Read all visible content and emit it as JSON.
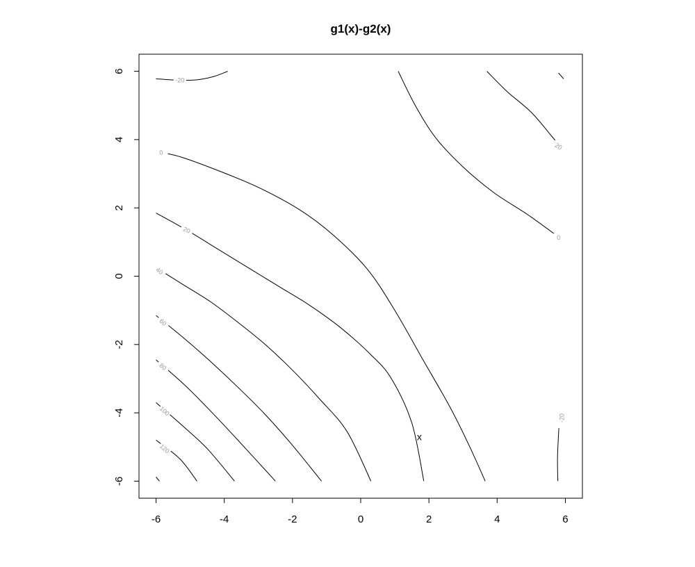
{
  "chart_data": {
    "type": "contour",
    "title": "g1(x)-g2(x)",
    "xlabel": "",
    "ylabel": "",
    "xlim": [
      -6.5,
      6.5
    ],
    "ylim": [
      -6.5,
      6.5
    ],
    "x_ticks": [
      -6,
      -4,
      -2,
      0,
      2,
      4,
      6
    ],
    "y_ticks": [
      -6,
      -4,
      -2,
      0,
      2,
      4,
      6
    ],
    "grid": false,
    "contours": [
      {
        "level": "-20",
        "points": [
          [
            -6.0,
            5.78
          ],
          [
            -5.4,
            5.74
          ],
          [
            -4.8,
            5.75
          ],
          [
            -4.3,
            5.85
          ],
          [
            -3.9,
            6.0
          ]
        ],
        "label_at": [
          -5.3,
          5.74
        ],
        "label_angle": 0
      },
      {
        "level": "20",
        "points": [
          [
            3.7,
            6.0
          ],
          [
            4.3,
            5.4
          ],
          [
            5.0,
            4.8
          ],
          [
            5.6,
            4.1
          ],
          [
            5.8,
            3.85
          ]
        ],
        "label_at": [
          5.8,
          3.8
        ],
        "label_angle": 32
      },
      {
        "level": "-20",
        "points": [
          [
            5.8,
            5.95
          ],
          [
            5.95,
            5.78
          ]
        ],
        "label_at": null,
        "label_angle": 0
      },
      {
        "level": "0",
        "points": [
          [
            1.1,
            6.0
          ],
          [
            1.6,
            5.0
          ],
          [
            2.2,
            4.05
          ],
          [
            3.0,
            3.2
          ],
          [
            3.9,
            2.45
          ],
          [
            4.9,
            1.8
          ],
          [
            5.8,
            1.15
          ]
        ],
        "label_at": [
          5.8,
          1.13
        ],
        "label_angle": 0
      },
      {
        "level": "0",
        "points": [
          [
            -6.0,
            3.65
          ],
          [
            -5.3,
            3.5
          ],
          [
            -4.2,
            3.1
          ],
          [
            -3.0,
            2.6
          ],
          [
            -1.8,
            1.95
          ],
          [
            -0.8,
            1.2
          ],
          [
            0.2,
            0.2
          ],
          [
            1.0,
            -1.0
          ],
          [
            1.8,
            -2.4
          ],
          [
            2.6,
            -3.8
          ],
          [
            3.2,
            -5.0
          ],
          [
            3.65,
            -6.0
          ]
        ],
        "label_at": [
          -5.85,
          3.62
        ],
        "label_angle": -12
      },
      {
        "level": "20",
        "points": [
          [
            -6.0,
            1.85
          ],
          [
            -5.1,
            1.35
          ],
          [
            -4.2,
            0.8
          ],
          [
            -3.3,
            0.25
          ],
          [
            -2.4,
            -0.3
          ],
          [
            -1.5,
            -0.85
          ],
          [
            -0.6,
            -1.5
          ],
          [
            0.3,
            -2.3
          ],
          [
            0.9,
            -3.0
          ],
          [
            1.5,
            -4.3
          ],
          [
            1.85,
            -6.0
          ]
        ],
        "label_at": [
          -5.1,
          1.35
        ],
        "label_angle": 27
      },
      {
        "level": "40",
        "points": [
          [
            -6.0,
            0.25
          ],
          [
            -5.2,
            -0.25
          ],
          [
            -4.4,
            -0.75
          ],
          [
            -3.6,
            -1.35
          ],
          [
            -2.8,
            -2.0
          ],
          [
            -2.0,
            -2.75
          ],
          [
            -1.2,
            -3.6
          ],
          [
            -0.4,
            -4.55
          ],
          [
            0.3,
            -6.0
          ]
        ],
        "label_at": [
          -5.9,
          0.15
        ],
        "label_angle": 38
      },
      {
        "level": "60",
        "points": [
          [
            -6.0,
            -1.15
          ],
          [
            -5.2,
            -1.8
          ],
          [
            -4.4,
            -2.5
          ],
          [
            -3.6,
            -3.25
          ],
          [
            -2.8,
            -4.05
          ],
          [
            -2.0,
            -4.95
          ],
          [
            -1.15,
            -6.0
          ]
        ],
        "label_at": [
          -5.8,
          -1.35
        ],
        "label_angle": 42
      },
      {
        "level": "80",
        "points": [
          [
            -6.0,
            -2.45
          ],
          [
            -5.2,
            -3.15
          ],
          [
            -4.4,
            -3.95
          ],
          [
            -3.6,
            -4.8
          ],
          [
            -2.5,
            -6.0
          ]
        ],
        "label_at": [
          -5.8,
          -2.65
        ],
        "label_angle": 43
      },
      {
        "level": "100",
        "points": [
          [
            -6.0,
            -3.7
          ],
          [
            -5.2,
            -4.4
          ],
          [
            -4.5,
            -5.05
          ],
          [
            -3.7,
            -6.0
          ]
        ],
        "label_at": [
          -5.75,
          -3.95
        ],
        "label_angle": 42
      },
      {
        "level": "120",
        "points": [
          [
            -6.0,
            -4.8
          ],
          [
            -5.3,
            -5.35
          ],
          [
            -4.8,
            -6.0
          ]
        ],
        "label_at": [
          -5.75,
          -5.05
        ],
        "label_angle": 42
      },
      {
        "level": "",
        "points": [
          [
            -6.0,
            -5.88
          ],
          [
            -5.9,
            -6.0
          ]
        ],
        "label_at": null,
        "label_angle": 0
      },
      {
        "level": "-20",
        "points": [
          [
            5.78,
            -6.0
          ],
          [
            5.77,
            -5.3
          ],
          [
            5.81,
            -4.45
          ]
        ],
        "label_at": [
          5.9,
          -4.15
        ],
        "label_angle": -90
      }
    ],
    "markers": [
      {
        "label": "x",
        "x": 1.72,
        "y": -4.7
      }
    ]
  }
}
